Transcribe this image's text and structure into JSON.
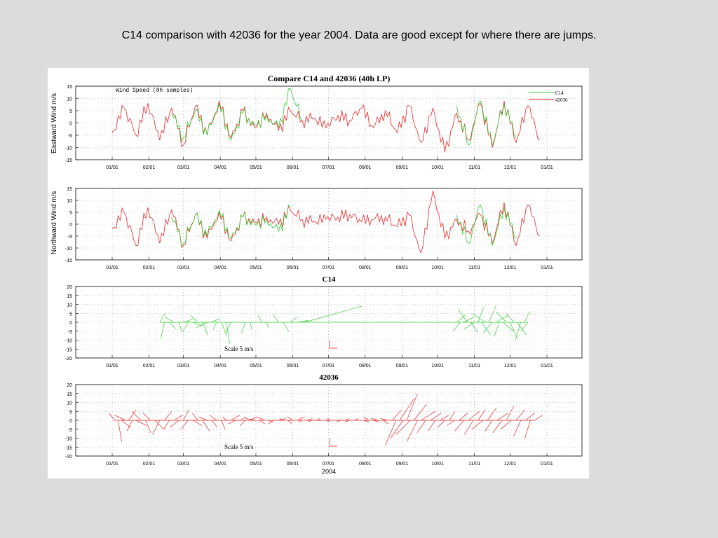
{
  "slide_title": "C14 comparison with 42036 for the year 2004. Data are good except for where there are jumps.",
  "colors": {
    "c14": "#33cc33",
    "b42036": "#ee2222",
    "overlap": "#8a6a20",
    "background": "#dcdcdc"
  },
  "figure": {
    "month_ticks": [
      "01/01",
      "02/01",
      "03/01",
      "04/01",
      "05/01",
      "06/01",
      "07/01",
      "08/01",
      "09/01",
      "10/01",
      "11/01",
      "12/01",
      "01/01"
    ],
    "xlabel": "2004",
    "legend_items": [
      "C14",
      "42036"
    ]
  },
  "chart_data": [
    {
      "type": "line",
      "title": "Compare C14 and 42036 (40h LP)",
      "annotation": "Wind Speed (8h samples)",
      "xlabel": "",
      "ylabel": "Eastward Wind m/s",
      "ylim": [
        -15,
        15
      ],
      "yticks": [
        "15",
        "10",
        "5",
        "0",
        "-5",
        "-10",
        "-15"
      ],
      "grid": true,
      "legend": "top-right",
      "x_unit": "day of year 2004",
      "x": [
        0,
        10,
        20,
        30,
        40,
        50,
        60,
        70,
        80,
        90,
        100,
        110,
        120,
        130,
        140,
        150,
        160,
        170,
        180,
        190,
        200,
        210,
        220,
        230,
        240,
        250,
        260,
        270,
        280,
        290,
        300,
        310,
        320,
        330,
        340,
        350,
        360
      ],
      "series": [
        {
          "name": "42036",
          "color": "#ee2222",
          "values": [
            -4,
            6,
            -5,
            8,
            -7,
            6,
            -9,
            7,
            -5,
            9,
            -6,
            5,
            -2,
            4,
            -3,
            5,
            1,
            2,
            -2,
            3,
            1,
            6,
            -2,
            5,
            -4,
            7,
            -8,
            6,
            -12,
            4,
            -7,
            8,
            -10,
            9,
            -8,
            7,
            -7
          ]
        },
        {
          "name": "C14",
          "color": "#33cc33",
          "values": [
            null,
            null,
            null,
            null,
            null,
            4,
            -6,
            5,
            -5,
            8,
            -7,
            4,
            -1,
            3,
            -2,
            14,
            1,
            null,
            null,
            null,
            null,
            null,
            null,
            null,
            null,
            null,
            null,
            null,
            null,
            7,
            -9,
            9,
            -9,
            8,
            -6,
            null,
            null
          ]
        }
      ]
    },
    {
      "type": "line",
      "title": "",
      "xlabel": "",
      "ylabel": "Northward Wind m/s",
      "ylim": [
        -15,
        15
      ],
      "yticks": [
        "15",
        "10",
        "5",
        "0",
        "-5",
        "-10",
        "-15"
      ],
      "grid": true,
      "x_unit": "day of year 2004",
      "x": [
        0,
        10,
        20,
        30,
        40,
        50,
        60,
        70,
        80,
        90,
        100,
        110,
        120,
        130,
        140,
        150,
        160,
        170,
        180,
        190,
        200,
        210,
        220,
        230,
        240,
        250,
        260,
        270,
        280,
        290,
        300,
        310,
        320,
        330,
        340,
        350,
        360
      ],
      "series": [
        {
          "name": "42036",
          "color": "#ee2222",
          "values": [
            -2,
            5,
            -9,
            7,
            -8,
            6,
            -9,
            4,
            -6,
            5,
            -7,
            3,
            1,
            3,
            0,
            6,
            2,
            1,
            2,
            3,
            4,
            1,
            2,
            3,
            -1,
            4,
            -12,
            14,
            -6,
            2,
            -3,
            4,
            -8,
            9,
            -9,
            8,
            -5
          ]
        },
        {
          "name": "C14",
          "color": "#33cc33",
          "values": [
            null,
            null,
            null,
            null,
            null,
            3,
            -8,
            4,
            -5,
            6,
            -6,
            3,
            0,
            2,
            -3,
            7,
            null,
            null,
            null,
            null,
            null,
            null,
            null,
            null,
            null,
            null,
            null,
            null,
            null,
            4,
            -8,
            8,
            -9,
            7,
            -6,
            null,
            null
          ]
        }
      ]
    },
    {
      "type": "stick",
      "title": "C14",
      "ylim": [
        -20,
        20
      ],
      "yticks": [
        "20",
        "15",
        "10",
        "5",
        "0",
        "-5",
        "-10",
        "-15",
        "-20"
      ],
      "scale_label": "Scale 5 m/s",
      "color": "#33cc33",
      "x_unit": "day of year 2004",
      "sticks": [
        {
          "day": 40,
          "u": 3,
          "v": 5
        },
        {
          "day": 44,
          "u": -2,
          "v": -9
        },
        {
          "day": 48,
          "u": 4,
          "v": -4
        },
        {
          "day": 52,
          "u": -5,
          "v": 3
        },
        {
          "day": 56,
          "u": 2,
          "v": -6
        },
        {
          "day": 60,
          "u": 6,
          "v": 2
        },
        {
          "day": 64,
          "u": -3,
          "v": -5
        },
        {
          "day": 68,
          "u": 5,
          "v": -2
        },
        {
          "day": 72,
          "u": -4,
          "v": 4
        },
        {
          "day": 76,
          "u": 3,
          "v": -7
        },
        {
          "day": 80,
          "u": -6,
          "v": -3
        },
        {
          "day": 84,
          "u": 4,
          "v": 2
        },
        {
          "day": 88,
          "u": -2,
          "v": -4
        },
        {
          "day": 92,
          "u": 3,
          "v": -8
        },
        {
          "day": 96,
          "u": 2,
          "v": -12
        },
        {
          "day": 100,
          "u": -3,
          "v": -6
        },
        {
          "day": 112,
          "u": -2,
          "v": -6
        },
        {
          "day": 116,
          "u": 1,
          "v": -4
        },
        {
          "day": 126,
          "u": -2,
          "v": 4
        },
        {
          "day": 130,
          "u": 1,
          "v": -3
        },
        {
          "day": 140,
          "u": -3,
          "v": 4
        },
        {
          "day": 144,
          "u": 3,
          "v": -5
        },
        {
          "day": 150,
          "u": 4,
          "v": 3
        },
        {
          "day": 156,
          "u": 6,
          "v": 1
        },
        {
          "day": 162,
          "u": 32,
          "v": 9
        },
        {
          "day": 290,
          "u": 5,
          "v": 4
        },
        {
          "day": 293,
          "u": -4,
          "v": -5
        },
        {
          "day": 296,
          "u": 6,
          "v": 3
        },
        {
          "day": 299,
          "u": -5,
          "v": 7
        },
        {
          "day": 302,
          "u": 4,
          "v": -6
        },
        {
          "day": 305,
          "u": -6,
          "v": -4
        },
        {
          "day": 308,
          "u": 3,
          "v": 8
        },
        {
          "day": 311,
          "u": 5,
          "v": -7
        },
        {
          "day": 314,
          "u": -7,
          "v": 5
        },
        {
          "day": 317,
          "u": 4,
          "v": 9
        },
        {
          "day": 320,
          "u": -5,
          "v": -6
        },
        {
          "day": 323,
          "u": 7,
          "v": 4
        },
        {
          "day": 326,
          "u": -3,
          "v": -8
        },
        {
          "day": 329,
          "u": 6,
          "v": -5
        },
        {
          "day": 332,
          "u": -6,
          "v": 6
        },
        {
          "day": 335,
          "u": 4,
          "v": -9
        },
        {
          "day": 338,
          "u": -4,
          "v": 5
        },
        {
          "day": 341,
          "u": 5,
          "v": -7
        },
        {
          "day": 344,
          "u": -3,
          "v": -10
        },
        {
          "day": 347,
          "u": 3,
          "v": 6
        },
        {
          "day": 350,
          "u": -4,
          "v": -5
        }
      ]
    },
    {
      "type": "stick",
      "title": "42036",
      "xlabel": "2004",
      "ylim": [
        -20,
        20
      ],
      "yticks": [
        "20",
        "15",
        "10",
        "5",
        "0",
        "-5",
        "-10",
        "-15",
        "-20"
      ],
      "scale_label": "Scale 5 m/s",
      "color": "#ee2222",
      "x_unit": "day of year 2004",
      "sticks": [
        {
          "day": 2,
          "u": -3,
          "v": 4
        },
        {
          "day": 5,
          "u": 2,
          "v": -12
        },
        {
          "day": 8,
          "u": 5,
          "v": -4
        },
        {
          "day": 11,
          "u": -6,
          "v": 3
        },
        {
          "day": 14,
          "u": 4,
          "v": 6
        },
        {
          "day": 17,
          "u": -3,
          "v": -6
        },
        {
          "day": 20,
          "u": 6,
          "v": -3
        },
        {
          "day": 24,
          "u": -5,
          "v": 5
        },
        {
          "day": 28,
          "u": 3,
          "v": -7
        },
        {
          "day": 32,
          "u": -4,
          "v": 4
        },
        {
          "day": 36,
          "u": 5,
          "v": -5
        },
        {
          "day": 40,
          "u": -4,
          "v": -8
        },
        {
          "day": 44,
          "u": 4,
          "v": 5
        },
        {
          "day": 48,
          "u": -3,
          "v": -5
        },
        {
          "day": 52,
          "u": 5,
          "v": 3
        },
        {
          "day": 56,
          "u": -5,
          "v": -4
        },
        {
          "day": 60,
          "u": 3,
          "v": 6
        },
        {
          "day": 64,
          "u": -4,
          "v": -5
        },
        {
          "day": 68,
          "u": 5,
          "v": -3
        },
        {
          "day": 72,
          "u": -3,
          "v": 4
        },
        {
          "day": 76,
          "u": 4,
          "v": -6
        },
        {
          "day": 80,
          "u": -5,
          "v": 2
        },
        {
          "day": 84,
          "u": 3,
          "v": -4
        },
        {
          "day": 88,
          "u": -4,
          "v": 3
        },
        {
          "day": 92,
          "u": 2,
          "v": -5
        },
        {
          "day": 96,
          "u": -2,
          "v": 2
        },
        {
          "day": 100,
          "u": 5,
          "v": 3
        },
        {
          "day": 104,
          "u": -4,
          "v": -2
        },
        {
          "day": 108,
          "u": 3,
          "v": 2
        },
        {
          "day": 112,
          "u": -3,
          "v": -3
        },
        {
          "day": 116,
          "u": 4,
          "v": 2
        },
        {
          "day": 120,
          "u": -5,
          "v": 1
        },
        {
          "day": 124,
          "u": 3,
          "v": -2
        },
        {
          "day": 128,
          "u": -4,
          "v": 2
        },
        {
          "day": 132,
          "u": 2,
          "v": -1
        },
        {
          "day": 136,
          "u": -3,
          "v": -2
        },
        {
          "day": 140,
          "u": 4,
          "v": 1
        },
        {
          "day": 144,
          "u": -2,
          "v": 1
        },
        {
          "day": 148,
          "u": 2,
          "v": -2
        },
        {
          "day": 152,
          "u": -3,
          "v": 2
        },
        {
          "day": 156,
          "u": 4,
          "v": 2
        },
        {
          "day": 160,
          "u": -2,
          "v": -1
        },
        {
          "day": 164,
          "u": 3,
          "v": 1
        },
        {
          "day": 168,
          "u": -2,
          "v": -1
        },
        {
          "day": 172,
          "u": 2,
          "v": 1
        },
        {
          "day": 176,
          "u": -3,
          "v": 0
        },
        {
          "day": 180,
          "u": 2,
          "v": -1
        },
        {
          "day": 184,
          "u": -2,
          "v": 1
        },
        {
          "day": 188,
          "u": 3,
          "v": 0
        },
        {
          "day": 192,
          "u": -2,
          "v": -1
        },
        {
          "day": 196,
          "u": 2,
          "v": 1
        },
        {
          "day": 200,
          "u": -3,
          "v": -1
        },
        {
          "day": 204,
          "u": 2,
          "v": 1
        },
        {
          "day": 208,
          "u": -2,
          "v": 0
        },
        {
          "day": 212,
          "u": 3,
          "v": -1
        },
        {
          "day": 216,
          "u": -3,
          "v": 2
        },
        {
          "day": 220,
          "u": 3,
          "v": -1
        },
        {
          "day": 224,
          "u": -4,
          "v": 1
        },
        {
          "day": 228,
          "u": 3,
          "v": -2
        },
        {
          "day": 232,
          "u": -4,
          "v": 1
        },
        {
          "day": 236,
          "u": 5,
          "v": 6
        },
        {
          "day": 239,
          "u": -6,
          "v": -14
        },
        {
          "day": 242,
          "u": 8,
          "v": 12
        },
        {
          "day": 245,
          "u": -7,
          "v": -10
        },
        {
          "day": 248,
          "u": 6,
          "v": 15
        },
        {
          "day": 251,
          "u": -8,
          "v": -8
        },
        {
          "day": 254,
          "u": 7,
          "v": 9
        },
        {
          "day": 257,
          "u": -6,
          "v": -12
        },
        {
          "day": 260,
          "u": 8,
          "v": 5
        },
        {
          "day": 264,
          "u": -5,
          "v": -7
        },
        {
          "day": 268,
          "u": 6,
          "v": 4
        },
        {
          "day": 272,
          "u": -4,
          "v": -6
        },
        {
          "day": 276,
          "u": 5,
          "v": 3
        },
        {
          "day": 280,
          "u": -4,
          "v": -4
        },
        {
          "day": 284,
          "u": 3,
          "v": 5
        },
        {
          "day": 288,
          "u": -4,
          "v": -3
        },
        {
          "day": 292,
          "u": 5,
          "v": 4
        },
        {
          "day": 296,
          "u": -5,
          "v": -6
        },
        {
          "day": 300,
          "u": 6,
          "v": 5
        },
        {
          "day": 304,
          "u": -5,
          "v": -8
        },
        {
          "day": 308,
          "u": 4,
          "v": 6
        },
        {
          "day": 312,
          "u": -6,
          "v": -5
        },
        {
          "day": 316,
          "u": 5,
          "v": 7
        },
        {
          "day": 320,
          "u": -4,
          "v": -6
        },
        {
          "day": 324,
          "u": 6,
          "v": 4
        },
        {
          "day": 328,
          "u": -5,
          "v": -7
        },
        {
          "day": 332,
          "u": 4,
          "v": 8
        },
        {
          "day": 336,
          "u": -6,
          "v": -5
        },
        {
          "day": 340,
          "u": 5,
          "v": 6
        },
        {
          "day": 344,
          "u": -4,
          "v": -9
        },
        {
          "day": 348,
          "u": 5,
          "v": 4
        },
        {
          "day": 352,
          "u": -3,
          "v": -10
        },
        {
          "day": 356,
          "u": 4,
          "v": 3
        }
      ]
    }
  ]
}
